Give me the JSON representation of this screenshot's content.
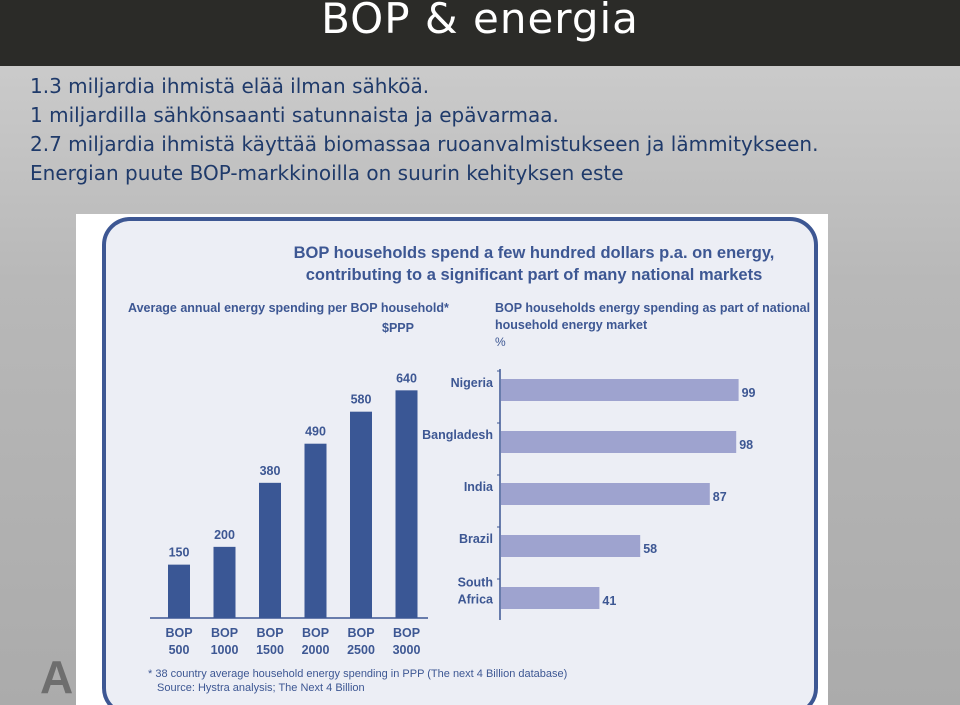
{
  "slide": {
    "title": "BOP & energia",
    "bullets": [
      "1.3 miljardia ihmistä elää ilman sähköä.",
      "1 miljardilla sähkönsaanti satunnaista ja epävarmaa.",
      "2.7 miljardia ihmistä käyttää biomassaa ruoanvalmistukseen ja lämmitykseen.",
      "Energian puute BOP-markkinoilla on suurin kehityksen este"
    ],
    "logo_text": "A"
  },
  "colors": {
    "title_bar": "#2b2b28",
    "bullet_text": "#1f3a6a",
    "bar_dark": "#3a5795",
    "bar_light": "#9ea3cf",
    "panel_bg": "#eceef5",
    "panel_border": "#3d5793",
    "chart_text": "#3d5793"
  },
  "figure": {
    "title_line1": "BOP households spend a few hundred dollars p.a. on energy,",
    "title_line2": "contributing to a significant part of many national markets",
    "footnote_line1": "* 38 country average household energy spending in PPP (The next 4 Billion database)",
    "footnote_line2": "Source: Hystra analysis; The Next 4 Billion"
  },
  "chart_data": [
    {
      "type": "bar",
      "title": "Average annual energy spending per BOP household*",
      "unit": "$PPP",
      "categories": [
        [
          "BOP",
          "500"
        ],
        [
          "BOP",
          "1000"
        ],
        [
          "BOP",
          "1500"
        ],
        [
          "BOP",
          "2000"
        ],
        [
          "BOP",
          "2500"
        ],
        [
          "BOP",
          "3000"
        ]
      ],
      "values": [
        150,
        200,
        380,
        490,
        580,
        640
      ],
      "ylim": [
        0,
        700
      ]
    },
    {
      "type": "bar",
      "orientation": "horizontal",
      "title_line1": "BOP households energy spending as part of national",
      "title_line2": "household energy market",
      "unit": "%",
      "categories": [
        [
          "Nigeria"
        ],
        [
          "Bangladesh"
        ],
        [
          "India"
        ],
        [
          "Brazil"
        ],
        [
          "South",
          "Africa"
        ]
      ],
      "values": [
        99,
        98,
        87,
        58,
        41
      ],
      "xlim": [
        0,
        100
      ]
    }
  ]
}
